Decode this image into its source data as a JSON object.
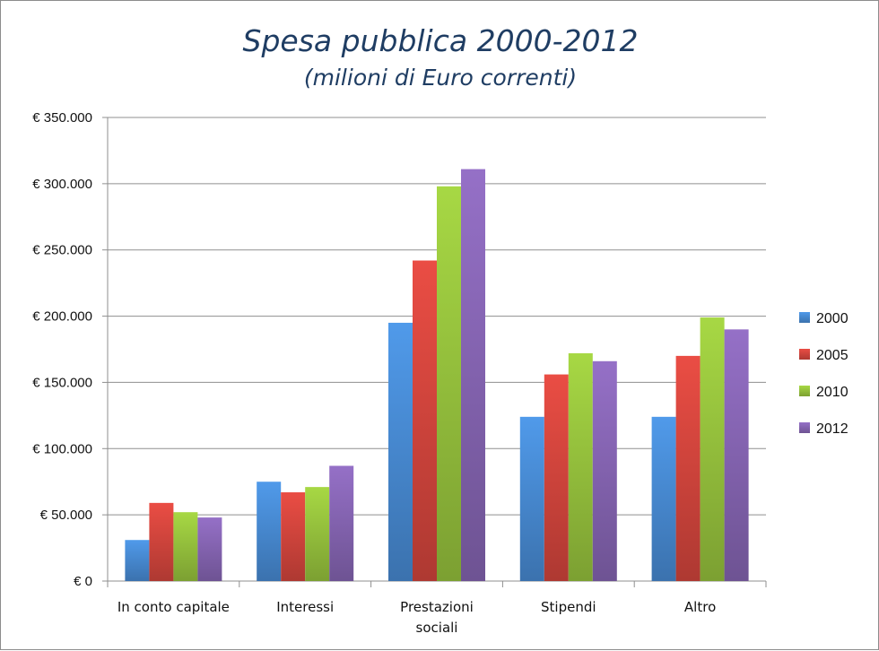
{
  "chart_data": {
    "type": "bar",
    "title": "Spesa pubblica 2000-2012",
    "subtitle": "(milioni di Euro correnti)",
    "xlabel": "",
    "ylabel": "",
    "ylim": [
      0,
      350000
    ],
    "y_ticks": [
      0,
      50000,
      100000,
      150000,
      200000,
      250000,
      300000,
      350000
    ],
    "y_tick_labels": [
      "€ 0",
      "€ 50.000",
      "€ 100.000",
      "€ 150.000",
      "€ 200.000",
      "€ 250.000",
      "€ 300.000",
      "€ 350.000"
    ],
    "grid": true,
    "legend_position": "right",
    "categories": [
      [
        "In conto capitale"
      ],
      [
        "Interessi"
      ],
      [
        "Prestazioni",
        "sociali"
      ],
      [
        "Stipendi"
      ],
      [
        "Altro"
      ]
    ],
    "series": [
      {
        "name": "2000",
        "color": "#4a8fd9",
        "values": [
          31000,
          75000,
          195000,
          124000,
          124000
        ]
      },
      {
        "name": "2005",
        "color": "#d9473f",
        "values": [
          59000,
          67000,
          242000,
          156000,
          170000
        ]
      },
      {
        "name": "2010",
        "color": "#9bc83f",
        "values": [
          52000,
          71000,
          298000,
          172000,
          199000
        ]
      },
      {
        "name": "2012",
        "color": "#8a68b8",
        "values": [
          48000,
          87000,
          311000,
          166000,
          190000
        ]
      }
    ]
  }
}
